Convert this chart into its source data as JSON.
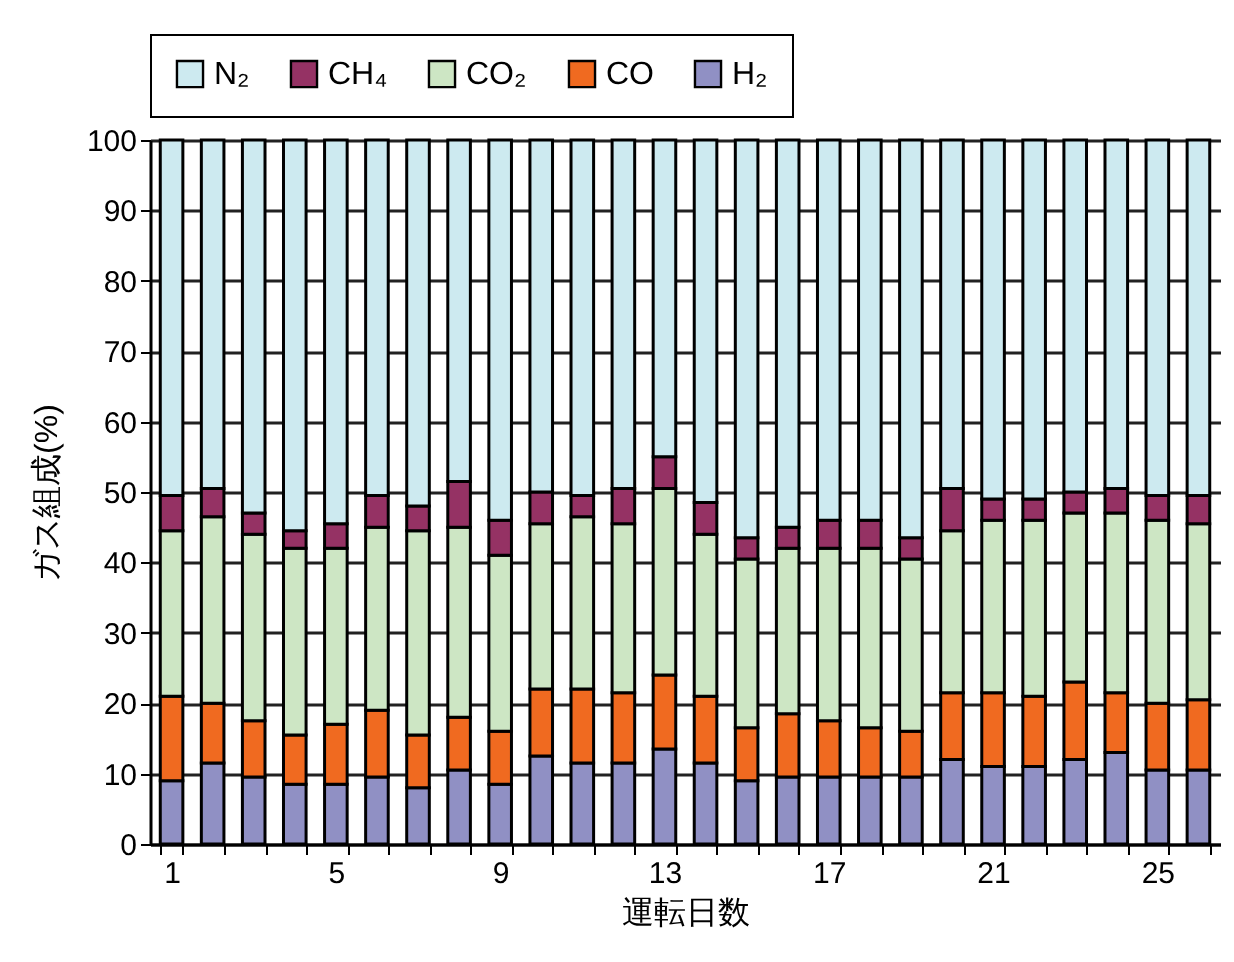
{
  "chart_data": {
    "type": "bar",
    "stacked": true,
    "xlabel": "運転日数",
    "ylabel": "ガス組成(%)",
    "categories": [
      "1",
      null,
      null,
      null,
      "5",
      null,
      null,
      null,
      "9",
      null,
      null,
      null,
      "13",
      null,
      null,
      null,
      "17",
      null,
      null,
      null,
      "21",
      null,
      null,
      null,
      "25",
      null
    ],
    "series": [
      {
        "name": "H₂",
        "color": "#9090c4",
        "values": [
          9,
          11.5,
          9.5,
          8.5,
          8.5,
          9.5,
          8,
          10.5,
          8.5,
          12.5,
          11.5,
          11.5,
          13.5,
          11.5,
          9,
          9.5,
          9.5,
          9.5,
          9.5,
          12,
          11,
          11,
          12,
          13,
          10.5,
          10.5
        ]
      },
      {
        "name": "CO",
        "color": "#f06a20",
        "values": [
          12,
          8.5,
          8,
          7,
          8.5,
          9.5,
          7.5,
          7.5,
          7.5,
          9.5,
          10.5,
          10,
          10.5,
          9.5,
          7.5,
          9,
          8,
          7,
          6.5,
          9.5,
          10.5,
          10,
          11,
          8.5,
          9.5,
          10
        ]
      },
      {
        "name": "CO₂",
        "color": "#cde6c4",
        "values": [
          23.5,
          26.5,
          26.5,
          26.5,
          25,
          26,
          29,
          27,
          25,
          23.5,
          24.5,
          24,
          26.5,
          23,
          24,
          23.5,
          24.5,
          25.5,
          24.5,
          23,
          24.5,
          25,
          24,
          25.5,
          26,
          25
        ]
      },
      {
        "name": "CH₄",
        "color": "#953264",
        "values": [
          5,
          4,
          3,
          2.5,
          3.5,
          4.5,
          3.5,
          6.5,
          5,
          4.5,
          3,
          5,
          4.5,
          4.5,
          3,
          3,
          4,
          4,
          3,
          6,
          3,
          3,
          3,
          3.5,
          3.5,
          4
        ]
      },
      {
        "name": "N₂",
        "color": "#cdeaf0",
        "values": [
          50.5,
          49.5,
          53,
          55.5,
          54.5,
          50.5,
          52,
          48.5,
          54,
          50,
          50.5,
          49.5,
          45,
          51.5,
          56.5,
          55,
          54,
          54,
          56.5,
          49.5,
          51,
          51,
          50,
          49.5,
          50.5,
          50.5
        ]
      }
    ],
    "ylim": [
      0,
      100
    ],
    "yticks": [
      0,
      10,
      20,
      30,
      40,
      50,
      60,
      70,
      80,
      90,
      100
    ],
    "grid": "y",
    "legend": "top"
  }
}
